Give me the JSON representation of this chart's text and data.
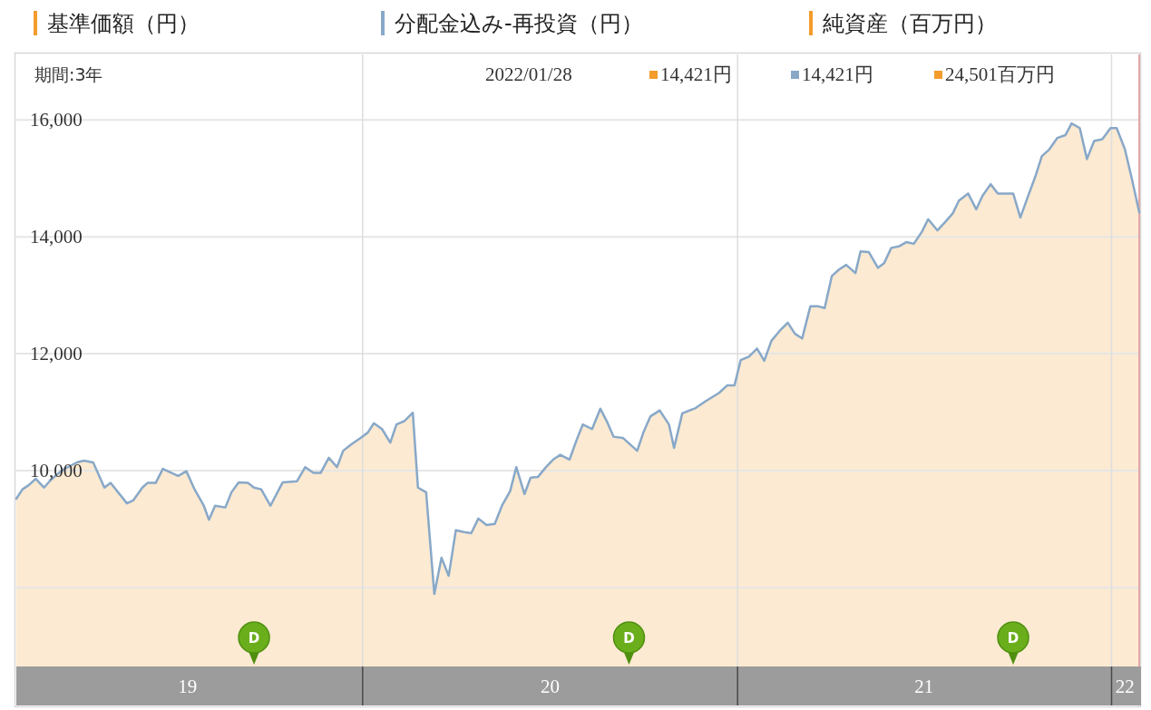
{
  "chart_data": {
    "type": "area",
    "subtitle": "期間:3年",
    "x": [
      "2019-01-28",
      "2019-02-03",
      "2019-02-09",
      "2019-02-16",
      "2019-02-24",
      "2019-03-02",
      "2019-03-09",
      "2019-03-15",
      "2019-03-28",
      "2019-04-04",
      "2019-04-13",
      "2019-04-24",
      "2019-04-30",
      "2019-05-16",
      "2019-05-22",
      "2019-05-31",
      "2019-06-05",
      "2019-06-13",
      "2019-06-20",
      "2019-07-05",
      "2019-07-13",
      "2019-07-21",
      "2019-07-30",
      "2019-08-04",
      "2019-08-10",
      "2019-08-20",
      "2019-08-26",
      "2019-09-02",
      "2019-09-11",
      "2019-09-17",
      "2019-09-24",
      "2019-10-03",
      "2019-10-15",
      "2019-10-29",
      "2019-11-06",
      "2019-11-14",
      "2019-11-21",
      "2019-11-29",
      "2019-12-07",
      "2019-12-13",
      "2019-12-21",
      "2019-12-30",
      "2020-01-06",
      "2020-01-12",
      "2020-01-20",
      "2020-01-28",
      "2020-02-03",
      "2020-02-11",
      "2020-02-19",
      "2020-02-24",
      "2020-03-03",
      "2020-03-11",
      "2020-03-18",
      "2020-03-25",
      "2020-04-01",
      "2020-04-09",
      "2020-04-16",
      "2020-04-23",
      "2020-05-01",
      "2020-05-09",
      "2020-05-16",
      "2020-05-24",
      "2020-05-30",
      "2020-06-07",
      "2020-06-13",
      "2020-06-20",
      "2020-06-28",
      "2020-07-05",
      "2020-07-12",
      "2020-07-21",
      "2020-07-28",
      "2020-08-03",
      "2020-08-12",
      "2020-08-20",
      "2020-08-27",
      "2020-09-02",
      "2020-09-11",
      "2020-09-25",
      "2020-10-01",
      "2020-10-08",
      "2020-10-17",
      "2020-10-26",
      "2020-10-31",
      "2020-11-08",
      "2020-11-21",
      "2020-11-30",
      "2020-12-14",
      "2020-12-22",
      "2020-12-29",
      "2021-01-04",
      "2021-01-12",
      "2021-01-20",
      "2021-01-27",
      "2021-02-03",
      "2021-02-11",
      "2021-02-19",
      "2021-02-26",
      "2021-03-05",
      "2021-03-13",
      "2021-03-21",
      "2021-03-27",
      "2021-04-03",
      "2021-04-10",
      "2021-04-17",
      "2021-04-26",
      "2021-05-01",
      "2021-05-09",
      "2021-05-18",
      "2021-05-24",
      "2021-05-31",
      "2021-06-08",
      "2021-06-15",
      "2021-06-22",
      "2021-06-30",
      "2021-07-06",
      "2021-07-15",
      "2021-07-23",
      "2021-07-30",
      "2021-08-05",
      "2021-08-14",
      "2021-08-22",
      "2021-08-28",
      "2021-09-05",
      "2021-09-12",
      "2021-09-27",
      "2021-10-04",
      "2021-10-11",
      "2021-10-19",
      "2021-10-25",
      "2021-11-01",
      "2021-11-09",
      "2021-11-17",
      "2021-11-23",
      "2021-12-01",
      "2021-12-08",
      "2021-12-15",
      "2021-12-23",
      "2021-12-31",
      "2022-01-06",
      "2022-01-14",
      "2022-01-21",
      "2022-01-28"
    ],
    "series": [
      {
        "name": "基準価額（円）",
        "color": "#f39c2b",
        "values": [
          9520,
          9680,
          9750,
          9860,
          9710,
          9830,
          9940,
          10020,
          10140,
          10170,
          10140,
          9710,
          9790,
          9440,
          9490,
          9710,
          9790,
          9790,
          10030,
          9910,
          9990,
          9680,
          9400,
          9160,
          9400,
          9370,
          9630,
          9800,
          9790,
          9710,
          9680,
          9400,
          9800,
          9820,
          10060,
          9960,
          9960,
          10220,
          10060,
          10340,
          10450,
          10560,
          10650,
          10810,
          10710,
          10480,
          10790,
          10850,
          10990,
          9710,
          9630,
          7890,
          8510,
          8200,
          8980,
          8950,
          8930,
          9180,
          9070,
          9090,
          9400,
          9650,
          10060,
          9600,
          9880,
          9890,
          10060,
          10190,
          10270,
          10190,
          10530,
          10790,
          10710,
          11060,
          10820,
          10580,
          10560,
          10340,
          10650,
          10930,
          11030,
          10790,
          10390,
          10980,
          11070,
          11180,
          11330,
          11460,
          11460,
          11890,
          11950,
          12090,
          11880,
          12220,
          12390,
          12530,
          12340,
          12260,
          12810,
          12810,
          12780,
          13330,
          13440,
          13520,
          13380,
          13750,
          13740,
          13470,
          13550,
          13810,
          13840,
          13910,
          13880,
          14090,
          14300,
          14110,
          14260,
          14400,
          14620,
          14740,
          14470,
          14700,
          14900,
          14740,
          14740,
          14330,
          14670,
          15050,
          15380,
          15490,
          15690,
          15740,
          15940,
          15860,
          15330,
          15640,
          15670,
          15860,
          15860,
          15500,
          14980,
          14421
        ]
      },
      {
        "name": "分配金込み-再投資（円）",
        "type": "line",
        "color": "#88a8c8",
        "values": [
          9520,
          9680,
          9750,
          9860,
          9710,
          9830,
          9940,
          10020,
          10140,
          10170,
          10140,
          9710,
          9790,
          9440,
          9490,
          9710,
          9790,
          9790,
          10030,
          9910,
          9990,
          9680,
          9400,
          9160,
          9400,
          9370,
          9630,
          9800,
          9790,
          9710,
          9680,
          9400,
          9800,
          9820,
          10060,
          9960,
          9960,
          10220,
          10060,
          10340,
          10450,
          10560,
          10650,
          10810,
          10710,
          10480,
          10790,
          10850,
          10990,
          9710,
          9630,
          7890,
          8510,
          8200,
          8980,
          8950,
          8930,
          9180,
          9070,
          9090,
          9400,
          9650,
          10060,
          9600,
          9880,
          9890,
          10060,
          10190,
          10270,
          10190,
          10530,
          10790,
          10710,
          11060,
          10820,
          10580,
          10560,
          10340,
          10650,
          10930,
          11030,
          10790,
          10390,
          10980,
          11070,
          11180,
          11330,
          11460,
          11460,
          11890,
          11950,
          12090,
          11880,
          12220,
          12390,
          12530,
          12340,
          12260,
          12810,
          12810,
          12780,
          13330,
          13440,
          13520,
          13380,
          13750,
          13740,
          13470,
          13550,
          13810,
          13840,
          13910,
          13880,
          14090,
          14300,
          14110,
          14260,
          14400,
          14620,
          14740,
          14470,
          14700,
          14900,
          14740,
          14740,
          14330,
          14670,
          15050,
          15380,
          15490,
          15690,
          15740,
          15940,
          15860,
          15330,
          15640,
          15670,
          15860,
          15860,
          15500,
          14980,
          14421
        ]
      },
      {
        "name": "純資産（百万円）",
        "type": "line",
        "color": "#f39c2b",
        "values": [
          null,
          null,
          null,
          null,
          null,
          null,
          null,
          null,
          null,
          null,
          null,
          null,
          null,
          null,
          null,
          null,
          null,
          null,
          null,
          null,
          null,
          null,
          null,
          null,
          null,
          null,
          null,
          null,
          null,
          null,
          null,
          null,
          null,
          null,
          null,
          null,
          null,
          null,
          null,
          null,
          null,
          null,
          null,
          null,
          null,
          null,
          null,
          null,
          null,
          null,
          null,
          null,
          null,
          null,
          null,
          null,
          null,
          null,
          null,
          null,
          null,
          null,
          null,
          null,
          null,
          null,
          null,
          null,
          null,
          null,
          null,
          null,
          null,
          null,
          null,
          null,
          null,
          null,
          null,
          null,
          null,
          null,
          null,
          null,
          null,
          null,
          null,
          null,
          null,
          null,
          null,
          null,
          null,
          null,
          null,
          null,
          null,
          null,
          null,
          null,
          null,
          null,
          null,
          null,
          null,
          null,
          null,
          null,
          null,
          null,
          null,
          null,
          null,
          null,
          null,
          null,
          null,
          null,
          null,
          null,
          null,
          null,
          null,
          null,
          null,
          null,
          null,
          null,
          null,
          null,
          null,
          null,
          null,
          null,
          null,
          null,
          null,
          null,
          null,
          null,
          null,
          null
        ]
      }
    ],
    "xlim": [
      "2019-01-28",
      "2022-01-28"
    ],
    "xticks": [
      {
        "value": "2019-07-14",
        "label": "19"
      },
      {
        "value": "2020-01-01",
        "label": null
      },
      {
        "value": "2020-07-02",
        "label": "20"
      },
      {
        "value": "2021-01-01",
        "label": null
      },
      {
        "value": "2021-07-02",
        "label": "21"
      },
      {
        "value": "2022-01-01",
        "label": null
      },
      {
        "value": "2022-01-14",
        "label": "22"
      }
    ],
    "ylim": [
      6650,
      17120
    ],
    "yticks": [
      {
        "value": 8000,
        "label": null
      },
      {
        "value": 10000,
        "label": "10,000"
      },
      {
        "value": 12000,
        "label": "12,000"
      },
      {
        "value": 14000,
        "label": "14,000"
      },
      {
        "value": 16000,
        "label": "16,000"
      }
    ],
    "ref_lines": [
      {
        "axis": "x",
        "value": "2022-01-28",
        "color": "#e2a9a9"
      }
    ],
    "annotations": [
      "2022/01/28",
      "14,421円",
      "14,421円",
      "24,501百万円",
      {
        "text": "D",
        "x": "2019-09-17"
      },
      {
        "text": "D",
        "x": "2020-09-17"
      },
      {
        "text": "D",
        "x": "2021-09-27"
      }
    ],
    "grid": true,
    "legend": "top"
  }
}
